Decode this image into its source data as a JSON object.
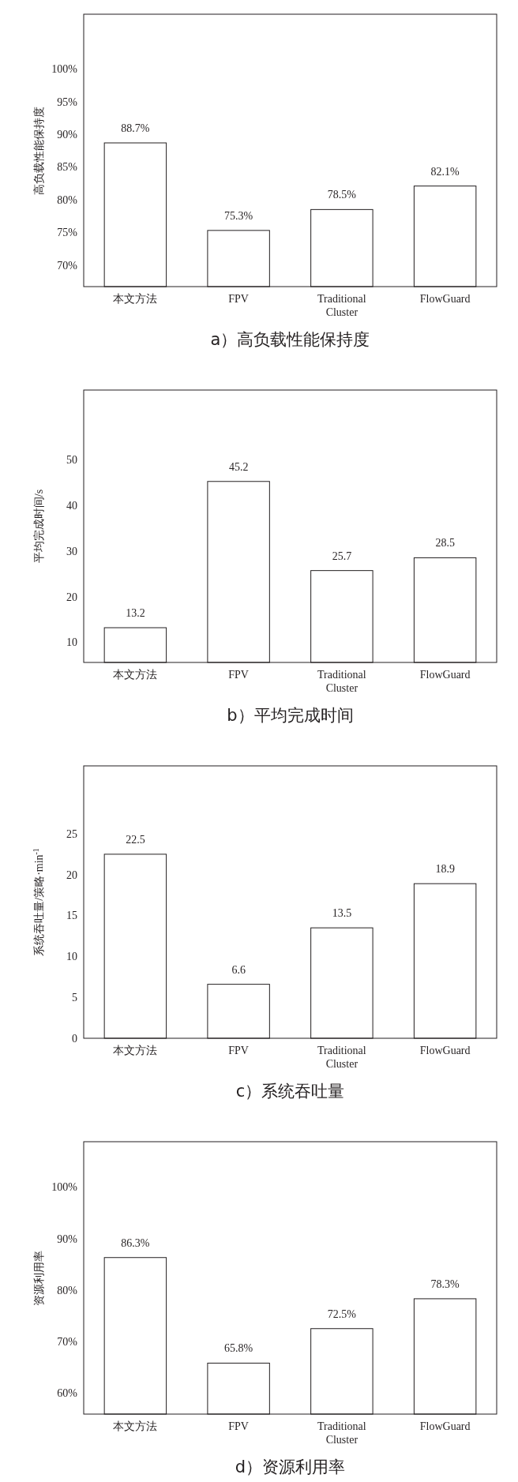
{
  "chart_data": [
    {
      "type": "bar",
      "title": "a）高负载性能保持度",
      "ylabel": "高负载性能保持度",
      "categories": [
        "本文方法",
        "FPV",
        "Traditional Cluster",
        "FlowGuard"
      ],
      "values": [
        88.7,
        75.3,
        78.5,
        82.1
      ],
      "value_labels": [
        "88.7%",
        "75.3%",
        "78.5%",
        "82.1%"
      ],
      "color": "#ffffff",
      "ylim": [
        66.7,
        108.4
      ],
      "yticks": [
        {
          "value": 70,
          "label": "70%"
        },
        {
          "value": 75,
          "label": "75%"
        },
        {
          "value": 80,
          "label": "80%"
        },
        {
          "value": 85,
          "label": "85%"
        },
        {
          "value": 90,
          "label": "90%"
        },
        {
          "value": 95,
          "label": "95%"
        },
        {
          "value": 100,
          "label": "100%"
        }
      ]
    },
    {
      "type": "bar",
      "title": "b）平均完成时间",
      "ylabel": "平均完成时间/s",
      "categories": [
        "本文方法",
        "FPV",
        "Traditional Cluster",
        "FlowGuard"
      ],
      "values": [
        13.2,
        45.2,
        25.7,
        28.5
      ],
      "data_labels": true,
      "color": "#ffffff",
      "ylim": [
        5.6,
        65.2
      ],
      "yticks": [
        10,
        20,
        30,
        40,
        50
      ]
    },
    {
      "type": "bar",
      "title": "c）系统吞吐量",
      "ylabel": "系统吞吐量/策略·min$^{-1}$",
      "categories": [
        "本文方法",
        "FPV",
        "Traditional Cluster",
        "FlowGuard"
      ],
      "values": [
        22.5,
        6.6,
        13.5,
        18.9
      ],
      "data_labels": true,
      "color": "#ffffff",
      "ylim": [
        0,
        33.3
      ],
      "yticks": [
        0,
        5,
        10,
        15,
        20,
        25
      ]
    },
    {
      "type": "bar",
      "title": "d）资源利用率",
      "ylabel": "资源利用率",
      "categories": [
        "本文方法",
        "FPV",
        "Traditional Cluster",
        "FlowGuard"
      ],
      "values": [
        86.3,
        65.8,
        72.5,
        78.3
      ],
      "value_labels": [
        "86.3%",
        "65.8%",
        "72.5%",
        "78.3%"
      ],
      "color": "#ffffff",
      "ylim": [
        55.9,
        108.8
      ],
      "yticks": [
        {
          "value": 60,
          "label": "60%"
        },
        {
          "value": 70,
          "label": "70%"
        },
        {
          "value": 80,
          "label": "80%"
        },
        {
          "value": 90,
          "label": "90%"
        },
        {
          "value": 100,
          "label": "100%"
        }
      ]
    }
  ]
}
